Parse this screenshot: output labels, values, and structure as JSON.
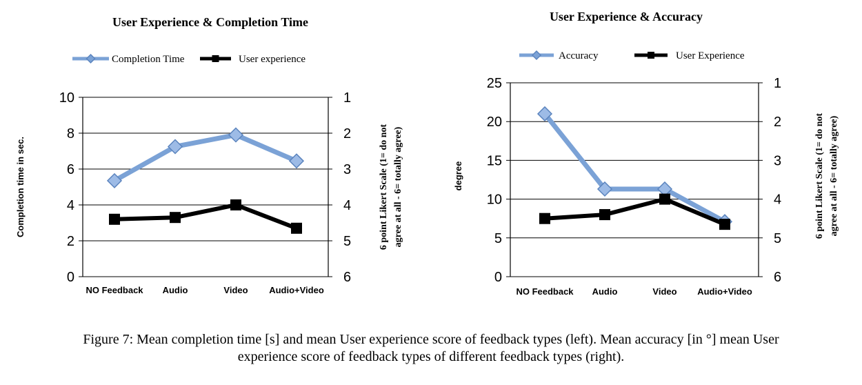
{
  "chart_data": [
    {
      "type": "line",
      "title": "User Experience & Completion Time",
      "categories": [
        "NO Feedback",
        "Audio",
        "Video",
        "Audio+Video"
      ],
      "ylabel": "Completion time in sec.",
      "ylim": [
        0,
        10
      ],
      "yticks": [
        "0",
        "2",
        "4",
        "6",
        "8",
        "10"
      ],
      "y2label": [
        "6 point Likert Scale (1= do not",
        "agree at all - 6= totally agree)"
      ],
      "y2lim": [
        1,
        6
      ],
      "y2ticks": [
        "1",
        "2",
        "3",
        "4",
        "5",
        "6"
      ],
      "y2_inverted": true,
      "grid": true,
      "legend_position": "top",
      "series": [
        {
          "name": "Completion Time",
          "values": [
            5.35,
            7.25,
            7.9,
            6.45
          ],
          "color": "#7ba2d6",
          "marker": "diamond",
          "axis": "left"
        },
        {
          "name": "User experience",
          "values": [
            4.4,
            4.35,
            4.0,
            4.65
          ],
          "color": "#000000",
          "marker": "square",
          "axis": "right"
        }
      ]
    },
    {
      "type": "line",
      "title": "User Experience & Accuracy",
      "categories": [
        "NO Feedback",
        "Audio",
        "Video",
        "Audio+Video"
      ],
      "ylabel": "degree",
      "ylim": [
        0,
        25
      ],
      "yticks": [
        "0",
        "5",
        "10",
        "15",
        "20",
        "25"
      ],
      "y2label": [
        "6 point Likert Scale (1= do not",
        "agree at all - 6= totally agree)"
      ],
      "y2lim": [
        1,
        6
      ],
      "y2ticks": [
        "1",
        "2",
        "3",
        "4",
        "5",
        "6"
      ],
      "y2_inverted": true,
      "grid": true,
      "legend_position": "top",
      "series": [
        {
          "name": "Accuracy",
          "values": [
            21.0,
            11.3,
            11.3,
            7.1
          ],
          "color": "#7ba2d6",
          "marker": "diamond",
          "axis": "left"
        },
        {
          "name": "User Experience",
          "values": [
            4.5,
            4.4,
            4.0,
            4.65
          ],
          "color": "#000000",
          "marker": "square",
          "axis": "right"
        }
      ]
    }
  ],
  "caption": {
    "line1": "Figure 7: Mean completion time [s] and mean User experience score of feedback types (left). Mean accuracy [in °] mean User",
    "line2": "experience score of feedback types of different feedback types (right)."
  }
}
